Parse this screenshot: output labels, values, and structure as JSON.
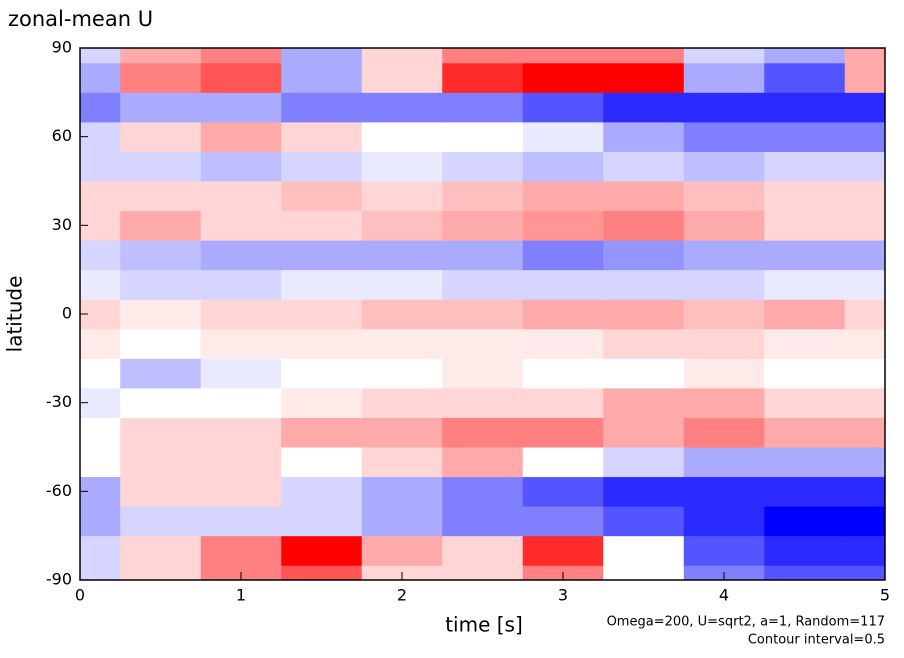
{
  "chart_data": {
    "type": "heatmap",
    "title": "zonal-mean U",
    "xlabel": "time [s]",
    "ylabel": "latitude",
    "annotations": [
      "Omega=200, U=sqrt2, a=1, Random=117",
      "Contour interval=0.5"
    ],
    "x": [
      0,
      0.5,
      1,
      1.5,
      2,
      2.5,
      3,
      3.5,
      4,
      4.5,
      5
    ],
    "y": [
      -90,
      -80,
      -70,
      -60,
      -50,
      -40,
      -30,
      -20,
      -10,
      0,
      10,
      20,
      30,
      40,
      50,
      60,
      70,
      80,
      90
    ],
    "z": [
      [
        -1,
        1,
        3,
        4,
        1,
        1,
        3,
        0,
        -3,
        -4,
        -4
      ],
      [
        -1,
        1,
        3,
        6,
        2,
        1,
        5,
        0,
        -4,
        -5,
        -5
      ],
      [
        -2,
        -1,
        -1,
        -1,
        -2,
        -3,
        -3,
        -4,
        -5,
        -6,
        -6
      ],
      [
        -2,
        1,
        1,
        -1,
        -2,
        -3,
        -4,
        -5,
        -5,
        -5,
        -5
      ],
      [
        0,
        1,
        1,
        0,
        1,
        2,
        0,
        -1,
        -2,
        -2,
        -2
      ],
      [
        0,
        1,
        1,
        2,
        2,
        3,
        3,
        2,
        3,
        2,
        2
      ],
      [
        -0.5,
        0,
        0,
        0.5,
        1,
        1,
        1,
        2,
        2,
        1,
        1
      ],
      [
        0,
        -1.5,
        -0.5,
        0,
        0,
        0.5,
        0,
        0,
        0.5,
        0,
        0
      ],
      [
        0.5,
        0,
        0.5,
        0.5,
        0.5,
        0.5,
        0.5,
        1,
        1,
        0.5,
        0.5
      ],
      [
        1,
        0.5,
        1,
        1,
        1.5,
        1.5,
        2,
        2,
        1.5,
        2,
        1
      ],
      [
        -0.5,
        -1,
        -1,
        -0.5,
        -0.5,
        -1,
        -1,
        -1,
        -1,
        -0.5,
        -0.5
      ],
      [
        -1,
        -1.5,
        -2,
        -2,
        -2,
        -2,
        -3,
        -2.5,
        -2,
        -2,
        -2
      ],
      [
        1,
        2,
        1,
        1,
        1.5,
        2,
        2.5,
        3,
        2,
        1,
        1
      ],
      [
        1,
        1,
        1,
        1.5,
        1,
        1.5,
        2,
        2,
        1.5,
        1,
        1
      ],
      [
        -1,
        -1,
        -1.5,
        -1,
        -0.5,
        -1,
        -1.5,
        -1,
        -1.5,
        -1,
        -1
      ],
      [
        -1,
        1,
        2,
        1,
        0,
        0,
        -0.5,
        -2,
        -3,
        -3,
        -3
      ],
      [
        -3,
        -2,
        -2,
        -3,
        -3,
        -3,
        -4,
        -5,
        -5,
        -5,
        -5
      ],
      [
        -2,
        3,
        4,
        -2,
        1,
        5,
        7,
        6,
        -2,
        -4,
        2
      ],
      [
        -1,
        2,
        3,
        -2,
        1,
        3,
        3,
        3,
        -1,
        -2,
        2
      ]
    ],
    "color_scale": [
      {
        "value": -6,
        "color": "#0000ff"
      },
      {
        "value": 0,
        "color": "#ffffff"
      },
      {
        "value": 6,
        "color": "#ff0000"
      }
    ],
    "xlim": [
      0,
      5
    ],
    "ylim": [
      -90,
      90
    ],
    "xticks": [
      0,
      1,
      2,
      3,
      4,
      5
    ],
    "yticks": [
      -90,
      -60,
      -30,
      0,
      30,
      60,
      90
    ]
  }
}
